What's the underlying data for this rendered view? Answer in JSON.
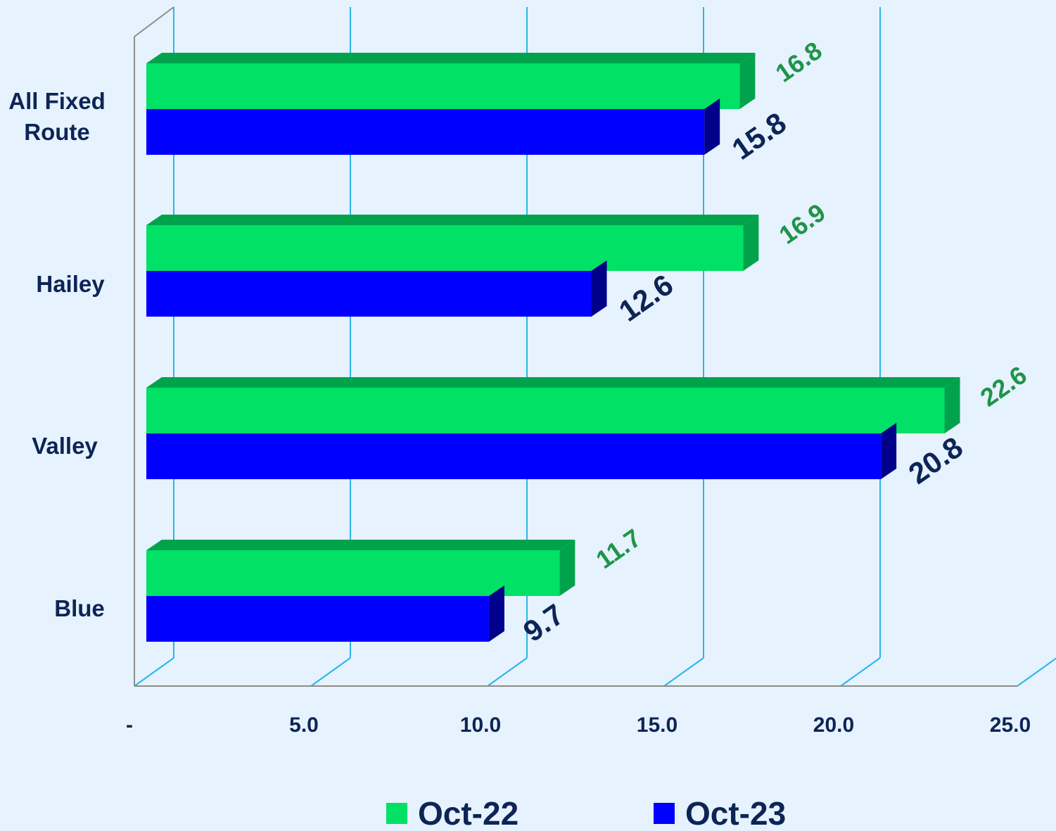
{
  "chart_data": {
    "type": "bar",
    "orientation": "horizontal",
    "style": "3d",
    "categories": [
      "All Fixed Route",
      "Hailey",
      "Valley",
      "Blue"
    ],
    "category_label_lines": [
      [
        "All Fixed",
        "Route"
      ],
      [
        "Hailey"
      ],
      [
        "Valley"
      ],
      [
        "Blue"
      ]
    ],
    "series": [
      {
        "name": "Oct-22",
        "values": [
          16.8,
          16.9,
          22.6,
          11.7
        ],
        "labels": [
          "16.8",
          "16.9",
          "22.6",
          "11.7"
        ],
        "color": "#00e166",
        "side_color": "#00a34b",
        "label_color": "#1e9448"
      },
      {
        "name": "Oct-23",
        "values": [
          15.8,
          12.6,
          20.8,
          9.7
        ],
        "labels": [
          "15.8",
          "12.6",
          "20.8",
          "9.7"
        ],
        "color": "#0000ff",
        "side_color": "#00008a",
        "label_color": "#0d2456"
      }
    ],
    "xlim": [
      0,
      25
    ],
    "xticks": [
      0,
      5,
      10,
      15,
      20,
      25
    ],
    "xtick_labels": [
      "-",
      "5.0",
      "10.0",
      "15.0",
      "20.0",
      "25.0"
    ],
    "grid": true,
    "grid_color": "#29b6e6",
    "axis_color": "#8c8c8c",
    "legend_position": "bottom",
    "background": "#e6f2fd",
    "title": "",
    "xlabel": "",
    "ylabel": ""
  }
}
